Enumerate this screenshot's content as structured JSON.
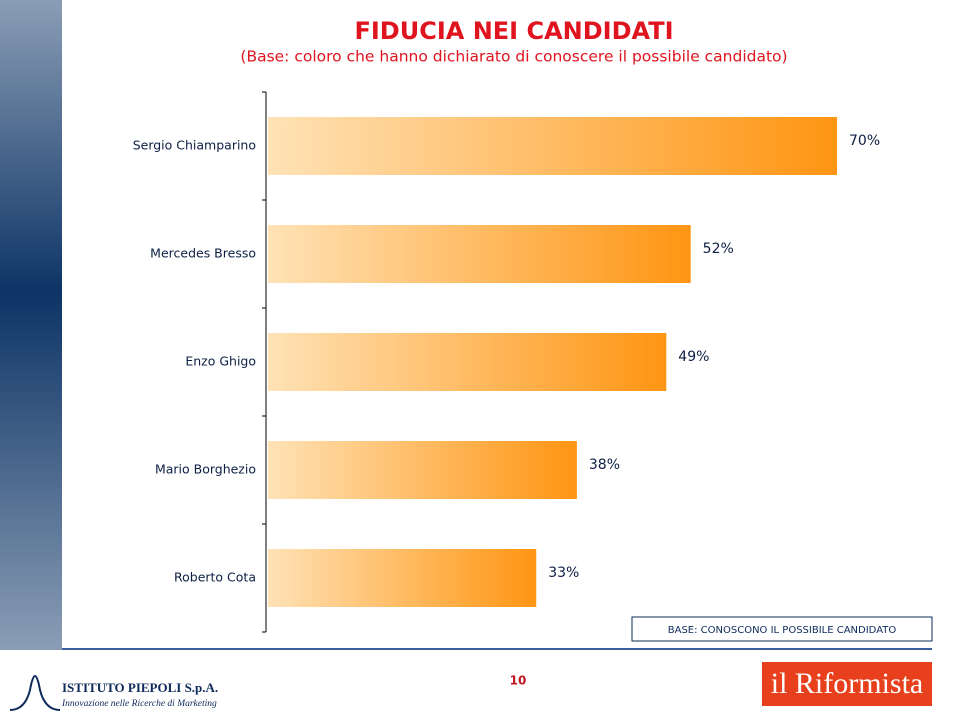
{
  "chart_data": {
    "type": "barh",
    "title": "FIDUCIA NEI CANDIDATI",
    "subtitle": "(Base: coloro che hanno dichiarato di conoscere il possibile candidato)",
    "categories": [
      "Sergio Chiamparino",
      "Mercedes Bresso",
      "Enzo Ghigo",
      "Mario Borghezio",
      "Roberto Cota"
    ],
    "values": [
      70,
      52,
      49,
      38,
      33
    ],
    "value_labels": [
      "70%",
      "52%",
      "49%",
      "38%",
      "33%"
    ],
    "gradient": [
      "#ffe2b6",
      "#ff9512"
    ],
    "note": "BASE: CONOSCONO IL POSSIBILE CANDIDATO"
  },
  "footer": {
    "page_number": "10",
    "logo_left": {
      "name": "ISTITUTO PIEPOLI S.p.A.",
      "tagline": "Innovazione nelle Ricerche di Marketing"
    },
    "logo_right": "il Riformista"
  }
}
